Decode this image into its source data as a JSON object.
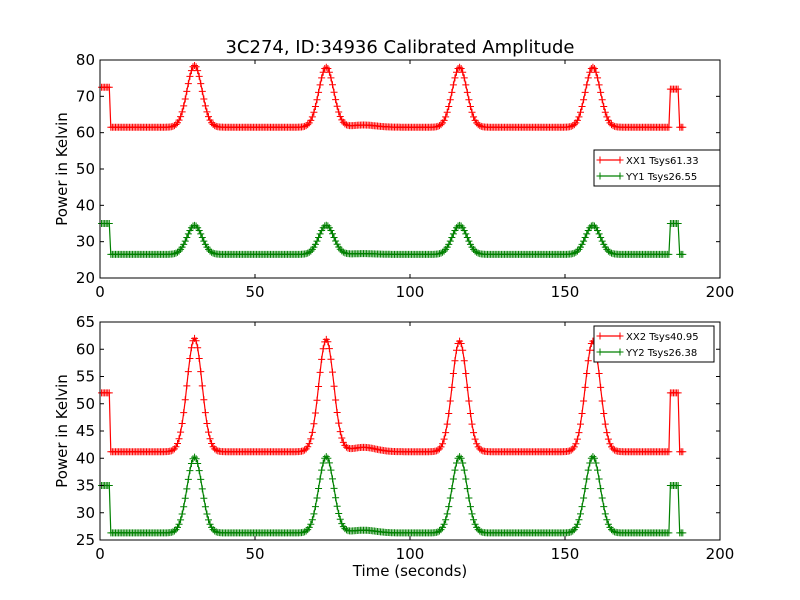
{
  "chart_data": [
    {
      "type": "line",
      "title": "3C274, ID:34936 Calibrated Amplitude",
      "xlabel": "",
      "ylabel": "Power in Kelvin",
      "xlim": [
        0,
        200
      ],
      "ylim": [
        20,
        80
      ],
      "xticks": [
        "0",
        "50",
        "100",
        "150",
        "200"
      ],
      "yticks": [
        "20",
        "30",
        "40",
        "50",
        "60",
        "70",
        "80"
      ],
      "legend_position": "center-right",
      "marker": "+",
      "series": [
        {
          "name": "XX1 Tsys61.33",
          "color": "#ff0000",
          "baseline": 61.5,
          "peaks": [
            [
              30.5,
              78.5
            ],
            [
              73,
              78
            ],
            [
              116,
              78
            ],
            [
              159,
              78
            ]
          ],
          "steps": [
            [
              0.5,
              3,
              72.5
            ],
            [
              184,
              186.5,
              72
            ]
          ],
          "bump": [
            [
              85,
              0.6
            ]
          ],
          "x_range": [
            0.5,
            188
          ]
        },
        {
          "name": "YY1 Tsys26.55",
          "color": "#008000",
          "baseline": 26.5,
          "peaks": [
            [
              30.5,
              34.5
            ],
            [
              73,
              34.5
            ],
            [
              116,
              34.5
            ],
            [
              159,
              34.5
            ]
          ],
          "steps": [
            [
              0.5,
              3,
              35
            ],
            [
              184,
              186.5,
              35
            ]
          ],
          "bump": [
            [
              85,
              0.2
            ]
          ],
          "x_range": [
            0.5,
            188
          ]
        }
      ]
    },
    {
      "type": "line",
      "title": "",
      "xlabel": "Time (seconds)",
      "ylabel": "Power in Kelvin",
      "xlim": [
        0,
        200
      ],
      "ylim": [
        25,
        65
      ],
      "xticks": [
        "0",
        "50",
        "100",
        "150",
        "200"
      ],
      "yticks": [
        "25",
        "30",
        "35",
        "40",
        "45",
        "50",
        "55",
        "60",
        "65"
      ],
      "legend_position": "upper-right",
      "marker": "+",
      "series": [
        {
          "name": "XX2 Tsys40.95",
          "color": "#ff0000",
          "baseline": 41.2,
          "peaks": [
            [
              30.5,
              62
            ],
            [
              73,
              61.8
            ],
            [
              116,
              61.5
            ],
            [
              159,
              61.5
            ]
          ],
          "steps": [
            [
              0.5,
              3,
              52
            ],
            [
              184,
              186.5,
              52
            ]
          ],
          "bump": [
            [
              85,
              0.8
            ]
          ],
          "x_range": [
            0.5,
            188
          ]
        },
        {
          "name": "YY2 Tsys26.38",
          "color": "#008000",
          "baseline": 26.3,
          "peaks": [
            [
              30.5,
              40.2
            ],
            [
              73,
              40.3
            ],
            [
              116,
              40.3
            ],
            [
              159,
              40.3
            ]
          ],
          "steps": [
            [
              0.5,
              3,
              35
            ],
            [
              184,
              186.5,
              35
            ]
          ],
          "bump": [
            [
              85,
              0.5
            ]
          ],
          "x_range": [
            0.5,
            188
          ]
        }
      ]
    }
  ]
}
